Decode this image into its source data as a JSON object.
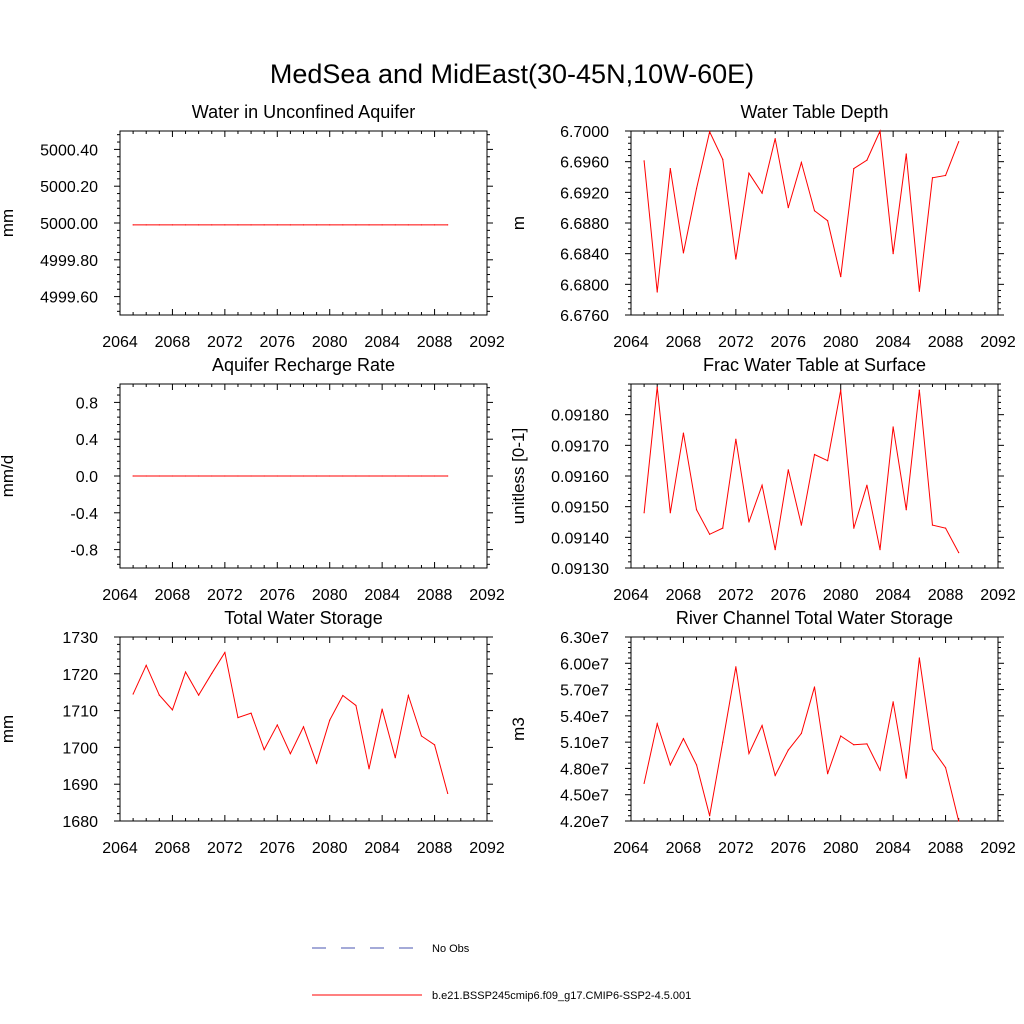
{
  "figure": {
    "title": "MedSea and MidEast(30-45N,10W-60E)"
  },
  "legend": {
    "items": [
      {
        "label": "No Obs",
        "style": "dashed",
        "color": "#4a55b0"
      },
      {
        "label": "b.e21.BSSP245cmip6.f09_g17.CMIP6-SSP2-4.5.001",
        "style": "solid",
        "color": "#ff0000"
      }
    ]
  },
  "chart_data": [
    {
      "type": "line",
      "title": "Water in Unconfined Aquifer",
      "xlabel": "",
      "ylabel": "mm",
      "xlim": [
        2064,
        2092
      ],
      "ylim": [
        4999.5,
        5000.5
      ],
      "xticks": [
        2064,
        2068,
        2072,
        2076,
        2080,
        2084,
        2088,
        2092
      ],
      "xtick_labels": [
        "2064",
        "2068",
        "2072",
        "2076",
        "2080",
        "2084",
        "2088",
        "2092"
      ],
      "yticks": [
        4999.6,
        4999.8,
        5000.0,
        5000.2,
        5000.4
      ],
      "ytick_labels": [
        "4999.60",
        "4999.80",
        "5000.00",
        "5000.20",
        "5000.40"
      ],
      "x": [
        2065,
        2066,
        2067,
        2068,
        2069,
        2070,
        2071,
        2072,
        2073,
        2074,
        2075,
        2076,
        2077,
        2078,
        2079,
        2080,
        2081,
        2082,
        2083,
        2084,
        2085,
        2086,
        2087,
        2088,
        2089
      ],
      "series": [
        {
          "color": "#ff0000",
          "values": [
            4999.99,
            4999.99,
            4999.99,
            4999.99,
            4999.99,
            4999.99,
            4999.99,
            4999.99,
            4999.99,
            4999.99,
            4999.99,
            4999.99,
            4999.99,
            4999.99,
            4999.99,
            4999.99,
            4999.99,
            4999.99,
            4999.99,
            4999.99,
            4999.99,
            4999.99,
            4999.99,
            4999.99,
            4999.99
          ]
        }
      ]
    },
    {
      "type": "line",
      "title": "Water Table Depth",
      "xlabel": "",
      "ylabel": "m",
      "xlim": [
        2064,
        2092
      ],
      "ylim": [
        6.676,
        6.7
      ],
      "xticks": [
        2064,
        2068,
        2072,
        2076,
        2080,
        2084,
        2088,
        2092
      ],
      "xtick_labels": [
        "2064",
        "2068",
        "2072",
        "2076",
        "2080",
        "2084",
        "2088",
        "2092"
      ],
      "yticks": [
        6.676,
        6.68,
        6.684,
        6.688,
        6.692,
        6.696,
        6.7
      ],
      "ytick_labels": [
        "6.6760",
        "6.6800",
        "6.6840",
        "6.6880",
        "6.6920",
        "6.6960",
        "6.7000"
      ],
      "x": [
        2065,
        2066,
        2067,
        2068,
        2069,
        2070,
        2071,
        2072,
        2073,
        2074,
        2075,
        2076,
        2077,
        2078,
        2079,
        2080,
        2081,
        2082,
        2083,
        2084,
        2085,
        2086,
        2087,
        2088,
        2089
      ],
      "series": [
        {
          "color": "#ff0000",
          "values": [
            6.6961,
            6.679,
            6.6951,
            6.6841,
            6.6925,
            6.6999,
            6.6963,
            6.6833,
            6.6945,
            6.6919,
            6.699,
            6.69,
            6.6959,
            6.6896,
            6.6883,
            6.681,
            6.6951,
            6.6962,
            6.7,
            6.684,
            6.697,
            6.6791,
            6.6939,
            6.6942,
            6.6986
          ]
        }
      ]
    },
    {
      "type": "line",
      "title": "Aquifer Recharge Rate",
      "xlabel": "",
      "ylabel": "mm/d",
      "xlim": [
        2064,
        2092
      ],
      "ylim": [
        -1.0,
        1.0
      ],
      "xticks": [
        2064,
        2068,
        2072,
        2076,
        2080,
        2084,
        2088,
        2092
      ],
      "xtick_labels": [
        "2064",
        "2068",
        "2072",
        "2076",
        "2080",
        "2084",
        "2088",
        "2092"
      ],
      "yticks": [
        -0.8,
        -0.4,
        0.0,
        0.4,
        0.8
      ],
      "ytick_labels": [
        "-0.8",
        "-0.4",
        "0.0",
        "0.4",
        "0.8"
      ],
      "x": [
        2065,
        2066,
        2067,
        2068,
        2069,
        2070,
        2071,
        2072,
        2073,
        2074,
        2075,
        2076,
        2077,
        2078,
        2079,
        2080,
        2081,
        2082,
        2083,
        2084,
        2085,
        2086,
        2087,
        2088,
        2089
      ],
      "series": [
        {
          "color": "#ff0000",
          "values": [
            0,
            0,
            0,
            0,
            0,
            0,
            0,
            0,
            0,
            0,
            0,
            0,
            0,
            0,
            0,
            0,
            0,
            0,
            0,
            0,
            0,
            0,
            0,
            0,
            0
          ]
        }
      ]
    },
    {
      "type": "line",
      "title": "Frac Water Table at Surface",
      "xlabel": "",
      "ylabel": "unitless [0-1]",
      "xlim": [
        2064,
        2092
      ],
      "ylim": [
        0.0913,
        0.0919
      ],
      "xticks": [
        2064,
        2068,
        2072,
        2076,
        2080,
        2084,
        2088,
        2092
      ],
      "xtick_labels": [
        "2064",
        "2068",
        "2072",
        "2076",
        "2080",
        "2084",
        "2088",
        "2092"
      ],
      "yticks": [
        0.0913,
        0.0914,
        0.0915,
        0.0916,
        0.0917,
        0.0918
      ],
      "ytick_labels": [
        "0.09130",
        "0.09140",
        "0.09150",
        "0.09160",
        "0.09170",
        "0.09180"
      ],
      "x": [
        2065,
        2066,
        2067,
        2068,
        2069,
        2070,
        2071,
        2072,
        2073,
        2074,
        2075,
        2076,
        2077,
        2078,
        2079,
        2080,
        2081,
        2082,
        2083,
        2084,
        2085,
        2086,
        2087,
        2088,
        2089
      ],
      "series": [
        {
          "color": "#ff0000",
          "values": [
            0.09148,
            0.09189,
            0.09148,
            0.09174,
            0.09149,
            0.09141,
            0.09143,
            0.09172,
            0.09145,
            0.09157,
            0.09136,
            0.09162,
            0.09144,
            0.09167,
            0.09165,
            0.09188,
            0.09143,
            0.09157,
            0.09136,
            0.09176,
            0.09149,
            0.09188,
            0.09144,
            0.09143,
            0.09135
          ]
        }
      ]
    },
    {
      "type": "line",
      "title": "Total Water Storage",
      "xlabel": "",
      "ylabel": "mm",
      "xlim": [
        2064,
        2092
      ],
      "ylim": [
        1680,
        1730
      ],
      "xticks": [
        2064,
        2068,
        2072,
        2076,
        2080,
        2084,
        2088,
        2092
      ],
      "xtick_labels": [
        "2064",
        "2068",
        "2072",
        "2076",
        "2080",
        "2084",
        "2088",
        "2092"
      ],
      "yticks": [
        1680,
        1690,
        1700,
        1710,
        1720,
        1730
      ],
      "ytick_labels": [
        "1680",
        "1690",
        "1700",
        "1710",
        "1720",
        "1730"
      ],
      "x": [
        2065,
        2066,
        2067,
        2068,
        2069,
        2070,
        2071,
        2072,
        2073,
        2074,
        2075,
        2076,
        2077,
        2078,
        2079,
        2080,
        2081,
        2082,
        2083,
        2084,
        2085,
        2086,
        2087,
        2088,
        2089
      ],
      "series": [
        {
          "color": "#ff0000",
          "values": [
            1714.5,
            1722.3,
            1714.2,
            1710.2,
            1720.5,
            1714.2,
            1720.1,
            1725.8,
            1708.1,
            1709.3,
            1699.4,
            1706.1,
            1698.3,
            1705.6,
            1695.7,
            1707.4,
            1714.1,
            1711.4,
            1694.2,
            1710.4,
            1697.2,
            1714.1,
            1703.1,
            1700.7,
            1687.5
          ]
        }
      ]
    },
    {
      "type": "line",
      "title": "River Channel Total Water Storage",
      "xlabel": "",
      "ylabel": "m3",
      "xlim": [
        2064,
        2092
      ],
      "ylim": [
        42000000,
        63000000
      ],
      "xticks": [
        2064,
        2068,
        2072,
        2076,
        2080,
        2084,
        2088,
        2092
      ],
      "xtick_labels": [
        "2064",
        "2068",
        "2072",
        "2076",
        "2080",
        "2084",
        "2088",
        "2092"
      ],
      "yticks": [
        42000000,
        45000000,
        48000000,
        51000000,
        54000000,
        57000000,
        60000000,
        63000000
      ],
      "ytick_labels": [
        "4.20e7",
        "4.50e7",
        "4.80e7",
        "5.10e7",
        "5.40e7",
        "5.70e7",
        "6.00e7",
        "6.30e7"
      ],
      "x": [
        2065,
        2066,
        2067,
        2068,
        2069,
        2070,
        2071,
        2072,
        2073,
        2074,
        2075,
        2076,
        2077,
        2078,
        2079,
        2080,
        2081,
        2082,
        2083,
        2084,
        2085,
        2086,
        2087,
        2088,
        2089
      ],
      "series": [
        {
          "color": "#ff0000",
          "values": [
            46300000,
            53100000,
            48400000,
            51400000,
            48400000,
            42600000,
            51000000,
            59600000,
            49700000,
            52900000,
            47200000,
            50100000,
            52000000,
            57300000,
            47400000,
            51700000,
            50700000,
            50800000,
            47800000,
            55600000,
            46900000,
            60600000,
            50200000,
            48100000,
            42000000
          ]
        }
      ]
    }
  ]
}
